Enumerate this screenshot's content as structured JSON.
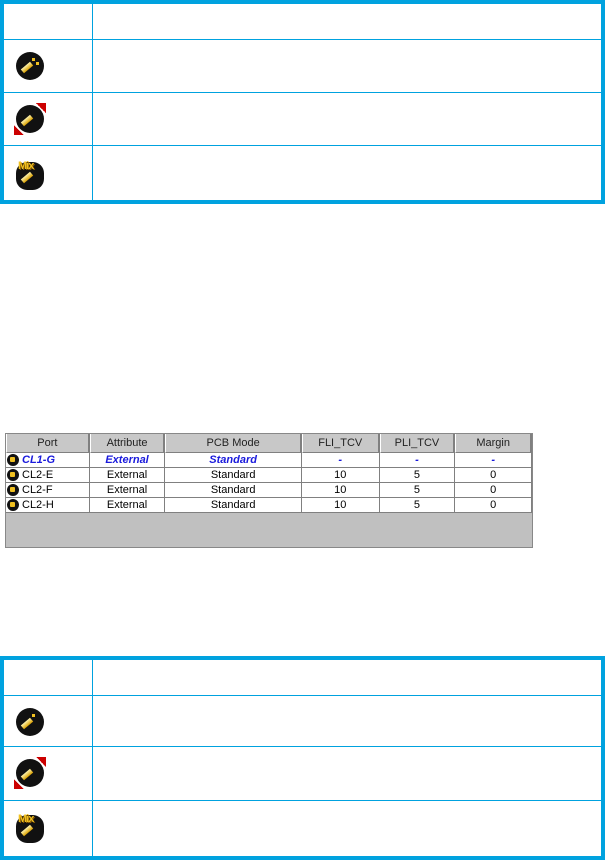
{
  "top_legend_table": {
    "rows": [
      {
        "icon": "port-icon"
      },
      {
        "icon": "port-blocked-icon"
      },
      {
        "icon": "port-mixed-icon"
      }
    ]
  },
  "port_grid": {
    "columns": [
      "Port",
      "Attribute",
      "PCB Mode",
      "FLI_TCV",
      "PLI_TCV",
      "Margin"
    ],
    "rows": [
      {
        "port": "CL1-G",
        "attribute": "External",
        "pcb_mode": "Standard",
        "fli_tcv": "-",
        "pli_tcv": "-",
        "margin": "-",
        "selected": true
      },
      {
        "port": "CL2-E",
        "attribute": "External",
        "pcb_mode": "Standard",
        "fli_tcv": "10",
        "pli_tcv": "5",
        "margin": "0"
      },
      {
        "port": "CL2-F",
        "attribute": "External",
        "pcb_mode": "Standard",
        "fli_tcv": "10",
        "pli_tcv": "5",
        "margin": "0"
      },
      {
        "port": "CL2-H",
        "attribute": "External",
        "pcb_mode": "Standard",
        "fli_tcv": "10",
        "pli_tcv": "5",
        "margin": "0"
      }
    ],
    "selected_color": "#1a1adc"
  },
  "bottom_legend_table": {
    "rows": [
      {
        "icon": "port-icon"
      },
      {
        "icon": "port-blocked-icon"
      },
      {
        "icon": "port-mixed-icon"
      }
    ]
  },
  "colors": {
    "table_border": "#00a2df"
  }
}
